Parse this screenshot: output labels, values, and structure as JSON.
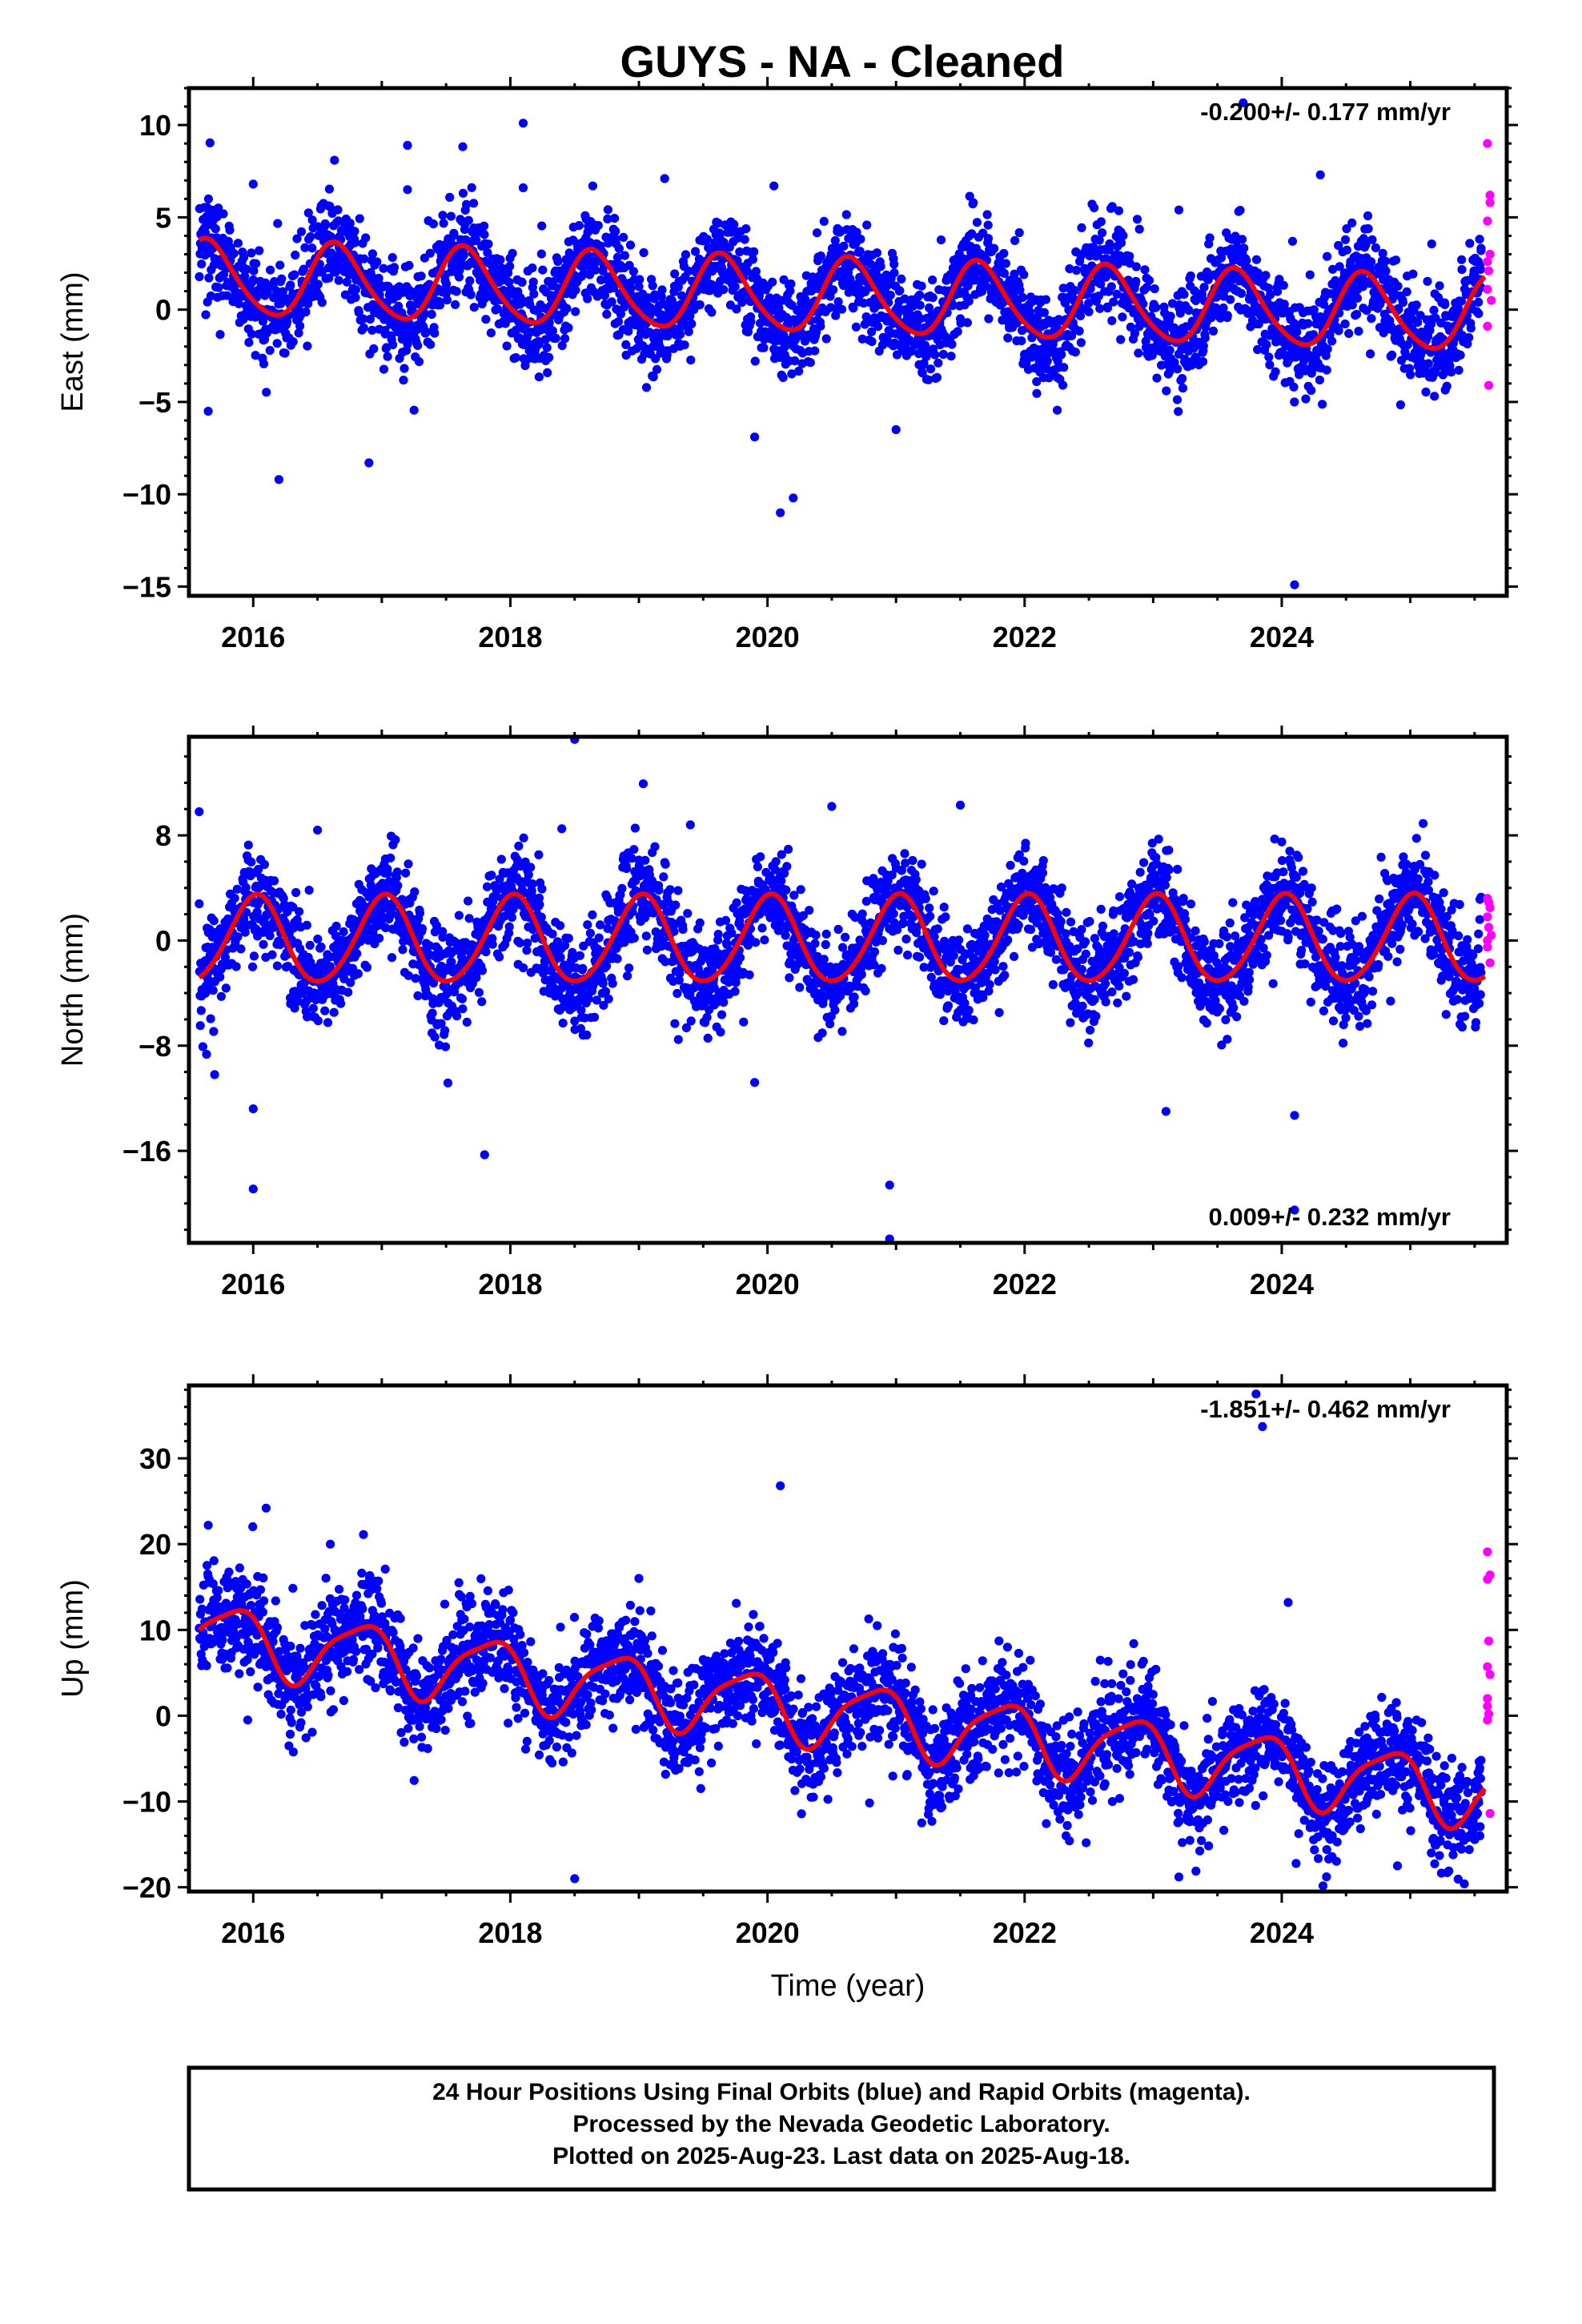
{
  "title": "GUYS  - NA - Cleaned",
  "caption": {
    "lines": [
      "24 Hour Positions Using Final Orbits (blue) and Rapid Orbits (magenta).",
      "Processed by the Nevada Geodetic Laboratory.",
      "Plotted on 2025-Aug-23. Last data on 2025-Aug-18."
    ]
  },
  "colors": {
    "final": "#0000ff",
    "rapid": "#ff00ff",
    "model": "#ff0000",
    "frame": "#000000"
  },
  "chart_data": [
    {
      "type": "scatter",
      "component": "east",
      "ylabel": "East (mm)",
      "xlabel": "",
      "rate_text": "-0.200+/- 0.177 mm/yr",
      "rate_position": "top-right",
      "xlim": [
        2015.5,
        2025.75
      ],
      "ylim": [
        -15.5,
        12
      ],
      "xticks": [
        "2016",
        "2018",
        "2020",
        "2022",
        "2024"
      ],
      "yticks": [
        "10",
        "5",
        "0",
        "−5",
        "−10",
        "−15"
      ],
      "yminor_step": 1,
      "data_start": 2015.58,
      "data_end": 2025.55,
      "rapid_start": 2025.57,
      "rapid_end": 2025.63,
      "trend": {
        "offset": 0.7,
        "rate": -0.2,
        "annual_amp": 2.0,
        "annual_phase": 3.8,
        "semiannual_amp": 0.25,
        "semiannual_phase": 0.5
      },
      "scatter_sd": 1.3,
      "outliers": [
        [
          2016.2,
          -9.2
        ],
        [
          2016.9,
          -8.3
        ],
        [
          2017.2,
          8.9
        ],
        [
          2018.1,
          10.1
        ],
        [
          2019.2,
          7.1
        ],
        [
          2020.1,
          -11
        ],
        [
          2020.2,
          -10.2
        ],
        [
          2020.05,
          6.7
        ],
        [
          2023.7,
          11.2
        ],
        [
          2024.1,
          -14.9
        ],
        [
          2024.3,
          7.3
        ],
        [
          2016.0,
          6.8
        ],
        [
          2015.65,
          -5.5
        ],
        [
          2017.2,
          6.5
        ],
        [
          2018.1,
          6.6
        ],
        [
          2019.9,
          -6.9
        ],
        [
          2021.0,
          -6.5
        ],
        [
          2023.2,
          5.4
        ]
      ],
      "rapid_points": [
        [
          2025.6,
          9.0
        ],
        [
          2025.62,
          6.2
        ],
        [
          2025.6,
          4.8
        ],
        [
          2025.62,
          3.0
        ],
        [
          2025.61,
          2.1
        ],
        [
          2025.6,
          1.1
        ],
        [
          2025.63,
          0.5
        ],
        [
          2025.6,
          -0.9
        ],
        [
          2025.61,
          -4.1
        ],
        [
          2025.62,
          5.8
        ],
        [
          2025.6,
          2.6
        ]
      ],
      "final_points": [
        [
          2025.55,
          1.2
        ],
        [
          2025.54,
          2.4
        ],
        [
          2025.53,
          0.4
        ],
        [
          2025.55,
          3.2
        ]
      ]
    },
    {
      "type": "scatter",
      "component": "north",
      "ylabel": "North (mm)",
      "xlabel": "",
      "rate_text": "0.009+/- 0.232 mm/yr",
      "rate_position": "bottom-right",
      "xlim": [
        2015.5,
        2025.75
      ],
      "ylim": [
        -23,
        15.5
      ],
      "xticks": [
        "2016",
        "2018",
        "2020",
        "2022",
        "2024"
      ],
      "yticks": [
        "8",
        "0",
        "−8",
        "−16"
      ],
      "yminor_step": 2,
      "data_start": 2015.58,
      "data_end": 2025.55,
      "rapid_start": 2025.57,
      "rapid_end": 2025.63,
      "trend": {
        "offset": 0.0,
        "rate": 0.009,
        "annual_amp": 3.3,
        "annual_phase": 1.45,
        "semiannual_amp": 0.3,
        "semiannual_phase": 0.8
      },
      "scatter_sd": 1.8,
      "outliers": [
        [
          2015.58,
          9.8
        ],
        [
          2015.7,
          -10.2
        ],
        [
          2016.0,
          -12.8
        ],
        [
          2016.0,
          -18.9
        ],
        [
          2017.8,
          -16.3
        ],
        [
          2018.5,
          15.3
        ],
        [
          2019.9,
          -10.8
        ],
        [
          2020.95,
          -18.6
        ],
        [
          2020.95,
          -22.7
        ],
        [
          2021.5,
          10.3
        ],
        [
          2020.5,
          10.2
        ],
        [
          2023.1,
          -13
        ],
        [
          2024.1,
          -13.3
        ],
        [
          2024.1,
          -20.5
        ],
        [
          2024.0,
          7.5
        ],
        [
          2025.1,
          8.9
        ],
        [
          2016.5,
          8.4
        ],
        [
          2018.4,
          8.5
        ],
        [
          2019.4,
          8.8
        ]
      ],
      "rapid_points": [
        [
          2025.6,
          3.2
        ],
        [
          2025.62,
          2.5
        ],
        [
          2025.6,
          1.8
        ],
        [
          2025.61,
          1.0
        ],
        [
          2025.63,
          0.4
        ],
        [
          2025.6,
          -0.5
        ],
        [
          2025.62,
          -1.7
        ],
        [
          2025.61,
          2.9
        ],
        [
          2025.6,
          0.0
        ]
      ],
      "final_points": [
        [
          2025.55,
          3.3
        ],
        [
          2025.54,
          1.6
        ],
        [
          2025.53,
          0.5
        ]
      ]
    },
    {
      "type": "scatter",
      "component": "up",
      "ylabel": "Up (mm)",
      "xlabel": "Time (year)",
      "rate_text": "-1.851+/- 0.462 mm/yr",
      "rate_position": "top-right",
      "xlim": [
        2015.5,
        2025.75
      ],
      "ylim": [
        -20.5,
        38.5
      ],
      "xticks": [
        "2016",
        "2018",
        "2020",
        "2022",
        "2024"
      ],
      "yticks": [
        "30",
        "20",
        "10",
        "0",
        "−10",
        "−20"
      ],
      "yminor_step": 2,
      "data_start": 2015.58,
      "data_end": 2025.55,
      "rapid_start": 2025.57,
      "rapid_end": 2025.63,
      "trend": {
        "offset": 0.3,
        "rate": -1.85,
        "annual_amp": 3.8,
        "annual_phase": 2.6,
        "semiannual_amp": 0.9,
        "semiannual_phase": 1.2
      },
      "scatter_sd": 3.0,
      "outliers": [
        [
          2016.1,
          24.2
        ],
        [
          2018.5,
          -19
        ],
        [
          2020.1,
          26.8
        ],
        [
          2023.8,
          37.5
        ],
        [
          2023.85,
          33.7
        ],
        [
          2024.05,
          13.2
        ],
        [
          2023.2,
          -18.8
        ],
        [
          2019.0,
          16
        ],
        [
          2016.6,
          20
        ],
        [
          2017.6,
          15.5
        ],
        [
          2021.2,
          -12.5
        ],
        [
          2022.3,
          -10.5
        ],
        [
          2024.9,
          -17.5
        ],
        [
          2025.3,
          -18.1
        ],
        [
          2015.65,
          22.2
        ]
      ],
      "rapid_points": [
        [
          2025.6,
          19.1
        ],
        [
          2025.62,
          16.4
        ],
        [
          2025.6,
          15.9
        ],
        [
          2025.61,
          8.7
        ],
        [
          2025.6,
          5.7
        ],
        [
          2025.62,
          4.8
        ],
        [
          2025.6,
          2.0
        ],
        [
          2025.61,
          0.2
        ],
        [
          2025.6,
          -0.5
        ],
        [
          2025.62,
          -11.4
        ],
        [
          2025.6,
          1.1
        ]
      ],
      "final_points": [
        [
          2025.55,
          -5.2
        ],
        [
          2025.54,
          -6.1
        ],
        [
          2025.53,
          -8.4
        ]
      ]
    }
  ]
}
